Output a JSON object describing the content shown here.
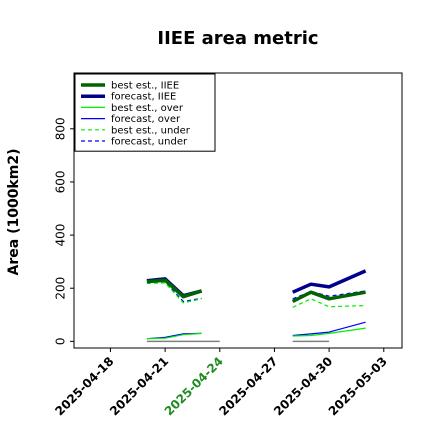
{
  "chart_data": {
    "type": "line",
    "title": "IIEE area metric",
    "xlabel": "",
    "ylabel": "Area (1000km2)",
    "x_ticks": [
      "2025-04-18",
      "2025-04-21",
      "2025-04-24",
      "2025-04-27",
      "2025-04-30",
      "2025-05-03"
    ],
    "highlighted_tick": "2025-04-24",
    "highlight_color": "#228b22",
    "xlim": [
      "2025-04-16",
      "2025-05-04"
    ],
    "ylim": [
      -25,
      1010
    ],
    "yticks": [
      0,
      200,
      400,
      600,
      800
    ],
    "legend_position": "top-left",
    "grid": false,
    "series": [
      {
        "name": "best est., IIEE",
        "color": "#006400",
        "style": "solid",
        "width": 3.5,
        "segments": [
          {
            "x": [
              "2025-04-20",
              "2025-04-21",
              "2025-04-22",
              "2025-04-23"
            ],
            "y": [
              225,
              230,
              168,
              190
            ]
          },
          {
            "x": [
              "2025-04-28",
              "2025-04-29",
              "2025-04-30",
              "2025-05-02"
            ],
            "y": [
              150,
              185,
              160,
              185
            ]
          }
        ]
      },
      {
        "name": "forecast, IIEE",
        "color": "#00008b",
        "style": "solid",
        "width": 3.5,
        "segments": [
          {
            "x": [
              "2025-04-20",
              "2025-04-21",
              "2025-04-22",
              "2025-04-23"
            ],
            "y": [
              228,
              235,
              172,
              190
            ]
          },
          {
            "x": [
              "2025-04-28",
              "2025-04-29",
              "2025-04-30",
              "2025-05-02"
            ],
            "y": [
              185,
              215,
              205,
              265
            ]
          }
        ]
      },
      {
        "name": "best est., over",
        "color": "#00ee00",
        "style": "solid",
        "width": 1.2,
        "segments": [
          {
            "x": [
              "2025-04-20",
              "2025-04-21",
              "2025-04-22",
              "2025-04-23"
            ],
            "y": [
              10,
              12,
              25,
              30
            ]
          },
          {
            "x": [
              "2025-04-28",
              "2025-04-29",
              "2025-04-30",
              "2025-05-02"
            ],
            "y": [
              20,
              22,
              30,
              50
            ]
          }
        ]
      },
      {
        "name": "forecast, over",
        "color": "#0000ff",
        "style": "solid",
        "width": 1.2,
        "segments": [
          {
            "x": [
              "2025-04-20",
              "2025-04-21",
              "2025-04-22",
              "2025-04-23"
            ],
            "y": [
              10,
              15,
              28,
              30
            ]
          },
          {
            "x": [
              "2025-04-28",
              "2025-04-29",
              "2025-04-30",
              "2025-05-02"
            ],
            "y": [
              22,
              28,
              35,
              72
            ]
          }
        ]
      },
      {
        "name": "best est., under",
        "color": "#00ee00",
        "style": "dashed",
        "width": 1.2,
        "segments": [
          {
            "x": [
              "2025-04-20",
              "2025-04-21",
              "2025-04-22",
              "2025-04-23"
            ],
            "y": [
              218,
              220,
              145,
              160
            ]
          },
          {
            "x": [
              "2025-04-28",
              "2025-04-29",
              "2025-04-30",
              "2025-05-02"
            ],
            "y": [
              128,
              160,
              130,
              135
            ]
          }
        ]
      },
      {
        "name": "forecast, under",
        "color": "#0000ff",
        "style": "dashed",
        "width": 1.2,
        "segments": [
          {
            "x": [
              "2025-04-20",
              "2025-04-21",
              "2025-04-22",
              "2025-04-23"
            ],
            "y": [
              222,
              225,
              150,
              162
            ]
          },
          {
            "x": [
              "2025-04-28",
              "2025-04-29",
              "2025-04-30",
              "2025-05-02"
            ],
            "y": [
              160,
              188,
              170,
              190
            ]
          }
        ]
      }
    ],
    "reference_lines": [
      {
        "color": "#808080",
        "y": 0,
        "x": [
          "2025-04-20",
          "2025-04-24"
        ]
      },
      {
        "color": "#808080",
        "y": 0,
        "x": [
          "2025-04-28",
          "2025-04-30"
        ]
      }
    ]
  }
}
